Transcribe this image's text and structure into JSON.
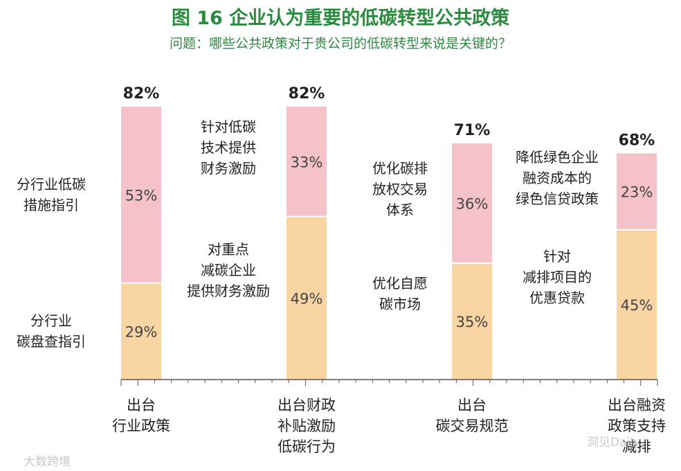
{
  "title": "图 16  企业认为重要的低碳转型公共政策",
  "subtitle": "问题：哪些公共政策对于贵公司的低碳转型来说是关键的？",
  "colors": {
    "top": "#f4c2c8",
    "bottom": "#f9d5a4",
    "title": "#2a8a3e"
  },
  "chart_data": {
    "type": "bar",
    "stacked": true,
    "categories": [
      "出台\n行业政策",
      "出台财政\n补贴激励\n低碳行为",
      "出台\n碳交易规范",
      "出台融资\n政策支持\n减排"
    ],
    "totals": [
      "82%",
      "82%",
      "71%",
      "68%"
    ],
    "series": [
      {
        "values": [
          29,
          49,
          35,
          45
        ],
        "value_labels": [
          "29%",
          "49%",
          "35%",
          "45%"
        ],
        "names": [
          "分行业\n碳盘查指引",
          "对重点\n减碳企业\n提供财务激励",
          "优化自愿\n碳市场",
          "针对\n减排项目的\n优惠贷款"
        ]
      },
      {
        "values": [
          53,
          33,
          36,
          23
        ],
        "value_labels": [
          "53%",
          "33%",
          "36%",
          "23%"
        ],
        "names": [
          "分行业低碳\n措施指引",
          "针对低碳\n技术提供\n财务激励",
          "优化碳排\n放权交易\n体系",
          "降低绿色企业\n融资成本的\n绿色信贷政策"
        ]
      }
    ],
    "ylim": [
      0,
      82
    ]
  },
  "watermarks": {
    "left": "大数跨境",
    "right": "洞见Daily"
  }
}
